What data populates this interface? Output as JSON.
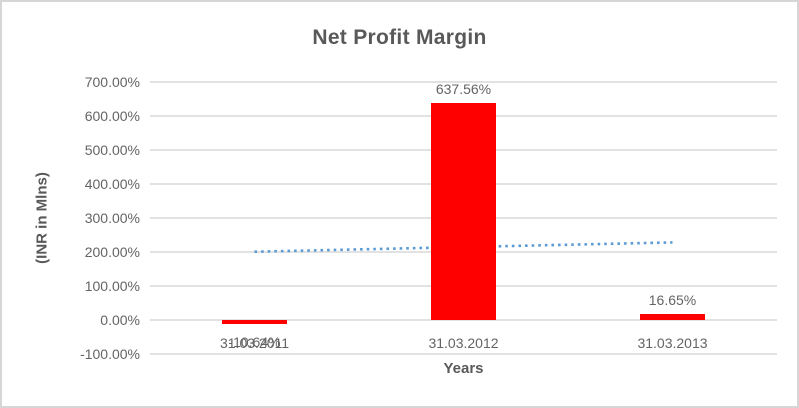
{
  "chart_data": {
    "type": "bar",
    "title": "Net Profit Margin",
    "xlabel": "Years",
    "ylabel": "(INR in Mlns)",
    "categories": [
      "31.03.2011",
      "31.03.2012",
      "31.03.2013"
    ],
    "series": [
      {
        "name": "Net Profit Margin",
        "values": [
          -10.64,
          637.56,
          16.65
        ]
      }
    ],
    "data_labels": [
      "-10.64%",
      "637.56%",
      "16.65%"
    ],
    "y_ticks": [
      {
        "label": "700.00%",
        "value": 700
      },
      {
        "label": "600.00%",
        "value": 600
      },
      {
        "label": "500.00%",
        "value": 500
      },
      {
        "label": "400.00%",
        "value": 400
      },
      {
        "label": "300.00%",
        "value": 300
      },
      {
        "label": "200.00%",
        "value": 200
      },
      {
        "label": "100.00%",
        "value": 100
      },
      {
        "label": "0.00%",
        "value": 0
      },
      {
        "label": "-100.00%",
        "value": -100
      }
    ],
    "ylim": [
      -100,
      700
    ],
    "grid": "horizontal",
    "legend": "none",
    "colors": {
      "bar": "#ff0000",
      "trendline": "#5b9bd5",
      "gridline": "#d9d9d9",
      "text": "#595959"
    },
    "trendline": {
      "type": "linear",
      "style": "dotted"
    }
  }
}
